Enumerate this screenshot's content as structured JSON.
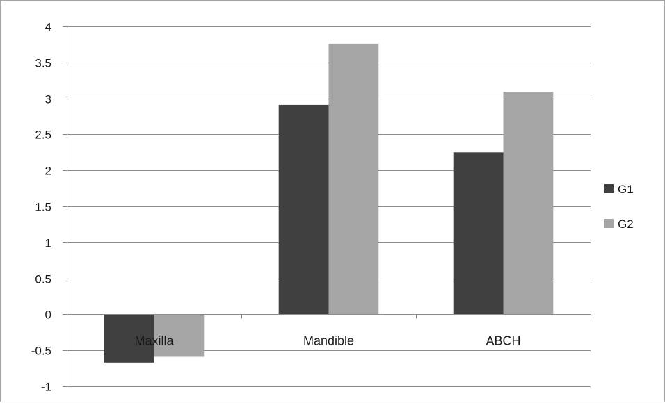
{
  "chart_data": {
    "type": "bar",
    "title": "",
    "xlabel": "",
    "ylabel": "",
    "categories": [
      "Maxilla",
      "Mandible",
      "ABCH"
    ],
    "series": [
      {
        "name": "G1",
        "values": [
          -0.67,
          2.91,
          2.25
        ],
        "color": "#404040"
      },
      {
        "name": "G2",
        "values": [
          -0.59,
          3.76,
          3.09
        ],
        "color": "#a5a5a5"
      }
    ],
    "ylim": [
      -1,
      4
    ],
    "y_ticks": [
      "4",
      "3.5",
      "3",
      "2.5",
      "2",
      "1.5",
      "1",
      "0.5",
      "0",
      "-0.5",
      "-1"
    ],
    "y_tick_values": [
      4,
      3.5,
      3,
      2.5,
      2,
      1.5,
      1,
      0.5,
      0,
      -0.5,
      -1
    ],
    "grid": true,
    "legend_position": "right"
  }
}
